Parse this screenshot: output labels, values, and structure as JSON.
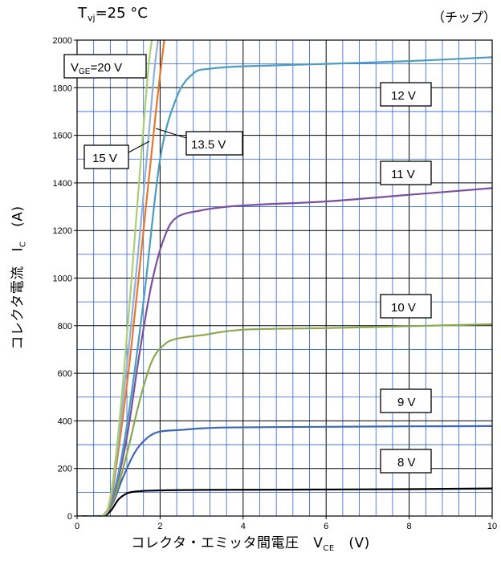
{
  "title_prefix": "T",
  "title_sub": "vj",
  "title_rest": "=25 °C",
  "note": "（チップ）",
  "chart_data": {
    "type": "line",
    "xlabel": "コレクタ・エミッタ間電圧",
    "xlabel_symbol": "V",
    "xlabel_symbol_sub": "CE",
    "xlabel_unit": "(V)",
    "ylabel": "コレクタ電流",
    "ylabel_symbol": "I",
    "ylabel_symbol_sub": "C",
    "ylabel_unit": "(A)",
    "xlim": [
      0,
      10
    ],
    "ylim": [
      0,
      2000
    ],
    "x_ticks": [
      0,
      2,
      4,
      6,
      8,
      10
    ],
    "y_ticks": [
      0,
      200,
      400,
      600,
      800,
      1000,
      1200,
      1400,
      1600,
      1800,
      2000
    ],
    "grid": true,
    "series": [
      {
        "name": "8 V",
        "color": "#000000",
        "points": [
          [
            0,
            0
          ],
          [
            0.6,
            0
          ],
          [
            0.8,
            20
          ],
          [
            1.0,
            70
          ],
          [
            1.2,
            95
          ],
          [
            1.4,
            103
          ],
          [
            1.8,
            107
          ],
          [
            3,
            110
          ],
          [
            5,
            111
          ],
          [
            8,
            113
          ],
          [
            10,
            116
          ]
        ]
      },
      {
        "name": "9 V",
        "color": "#3c67b3",
        "points": [
          [
            0,
            0
          ],
          [
            0.6,
            0
          ],
          [
            0.85,
            50
          ],
          [
            1.1,
            160
          ],
          [
            1.4,
            270
          ],
          [
            1.7,
            330
          ],
          [
            2.0,
            355
          ],
          [
            2.5,
            362
          ],
          [
            3.5,
            372
          ],
          [
            6,
            375
          ],
          [
            8,
            377
          ],
          [
            10,
            378
          ]
        ]
      },
      {
        "name": "10 V",
        "color": "#8aa84e",
        "points": [
          [
            0,
            0
          ],
          [
            0.6,
            0
          ],
          [
            0.9,
            80
          ],
          [
            1.2,
            260
          ],
          [
            1.5,
            480
          ],
          [
            1.8,
            650
          ],
          [
            2.1,
            720
          ],
          [
            2.4,
            745
          ],
          [
            3,
            760
          ],
          [
            4,
            783
          ],
          [
            6,
            790
          ],
          [
            8,
            798
          ],
          [
            10,
            806
          ]
        ]
      },
      {
        "name": "11 V",
        "color": "#7b4fa0",
        "points": [
          [
            0,
            0
          ],
          [
            0.6,
            0
          ],
          [
            0.9,
            100
          ],
          [
            1.2,
            330
          ],
          [
            1.5,
            680
          ],
          [
            1.8,
            980
          ],
          [
            2.1,
            1170
          ],
          [
            2.4,
            1255
          ],
          [
            3,
            1285
          ],
          [
            3.6,
            1300
          ],
          [
            4.5,
            1310
          ],
          [
            6,
            1322
          ],
          [
            8,
            1350
          ],
          [
            10,
            1378
          ]
        ]
      },
      {
        "name": "12 V",
        "color": "#4a9cc0",
        "points": [
          [
            0,
            0
          ],
          [
            0.6,
            0
          ],
          [
            0.9,
            110
          ],
          [
            1.2,
            380
          ],
          [
            1.6,
            900
          ],
          [
            2.0,
            1500
          ],
          [
            2.4,
            1760
          ],
          [
            2.8,
            1860
          ],
          [
            3.2,
            1880
          ],
          [
            4,
            1890
          ],
          [
            6,
            1900
          ],
          [
            8,
            1912
          ],
          [
            10,
            1928
          ]
        ]
      },
      {
        "name": "13.5 V",
        "color": "#e8772e",
        "points": [
          [
            0,
            0
          ],
          [
            0.6,
            0
          ],
          [
            0.8,
            60
          ],
          [
            1.0,
            280
          ],
          [
            1.3,
            700
          ],
          [
            1.6,
            1200
          ],
          [
            1.9,
            1700
          ],
          [
            2.1,
            2000
          ]
        ]
      },
      {
        "name": "15 V",
        "color": "#8fb0dc",
        "points": [
          [
            0,
            0
          ],
          [
            0.6,
            0
          ],
          [
            0.8,
            70
          ],
          [
            1.0,
            320
          ],
          [
            1.3,
            800
          ],
          [
            1.6,
            1350
          ],
          [
            1.85,
            1850
          ],
          [
            1.95,
            2000
          ]
        ]
      },
      {
        "name": "V_GE=20 V",
        "color": "#a9cf72",
        "points": [
          [
            0,
            0
          ],
          [
            0.6,
            0
          ],
          [
            0.8,
            80
          ],
          [
            1.0,
            360
          ],
          [
            1.25,
            860
          ],
          [
            1.5,
            1420
          ],
          [
            1.7,
            1850
          ],
          [
            1.8,
            2000
          ]
        ]
      }
    ],
    "labels": {
      "v20_prefix": "V",
      "v20_sub": "GE",
      "v20_rest": "=20 V",
      "v15": "15 V",
      "v135": "13.5 V",
      "v12": "12 V",
      "v11": "11 V",
      "v10": "10 V",
      "v9": "9 V",
      "v8": "8 V"
    }
  }
}
